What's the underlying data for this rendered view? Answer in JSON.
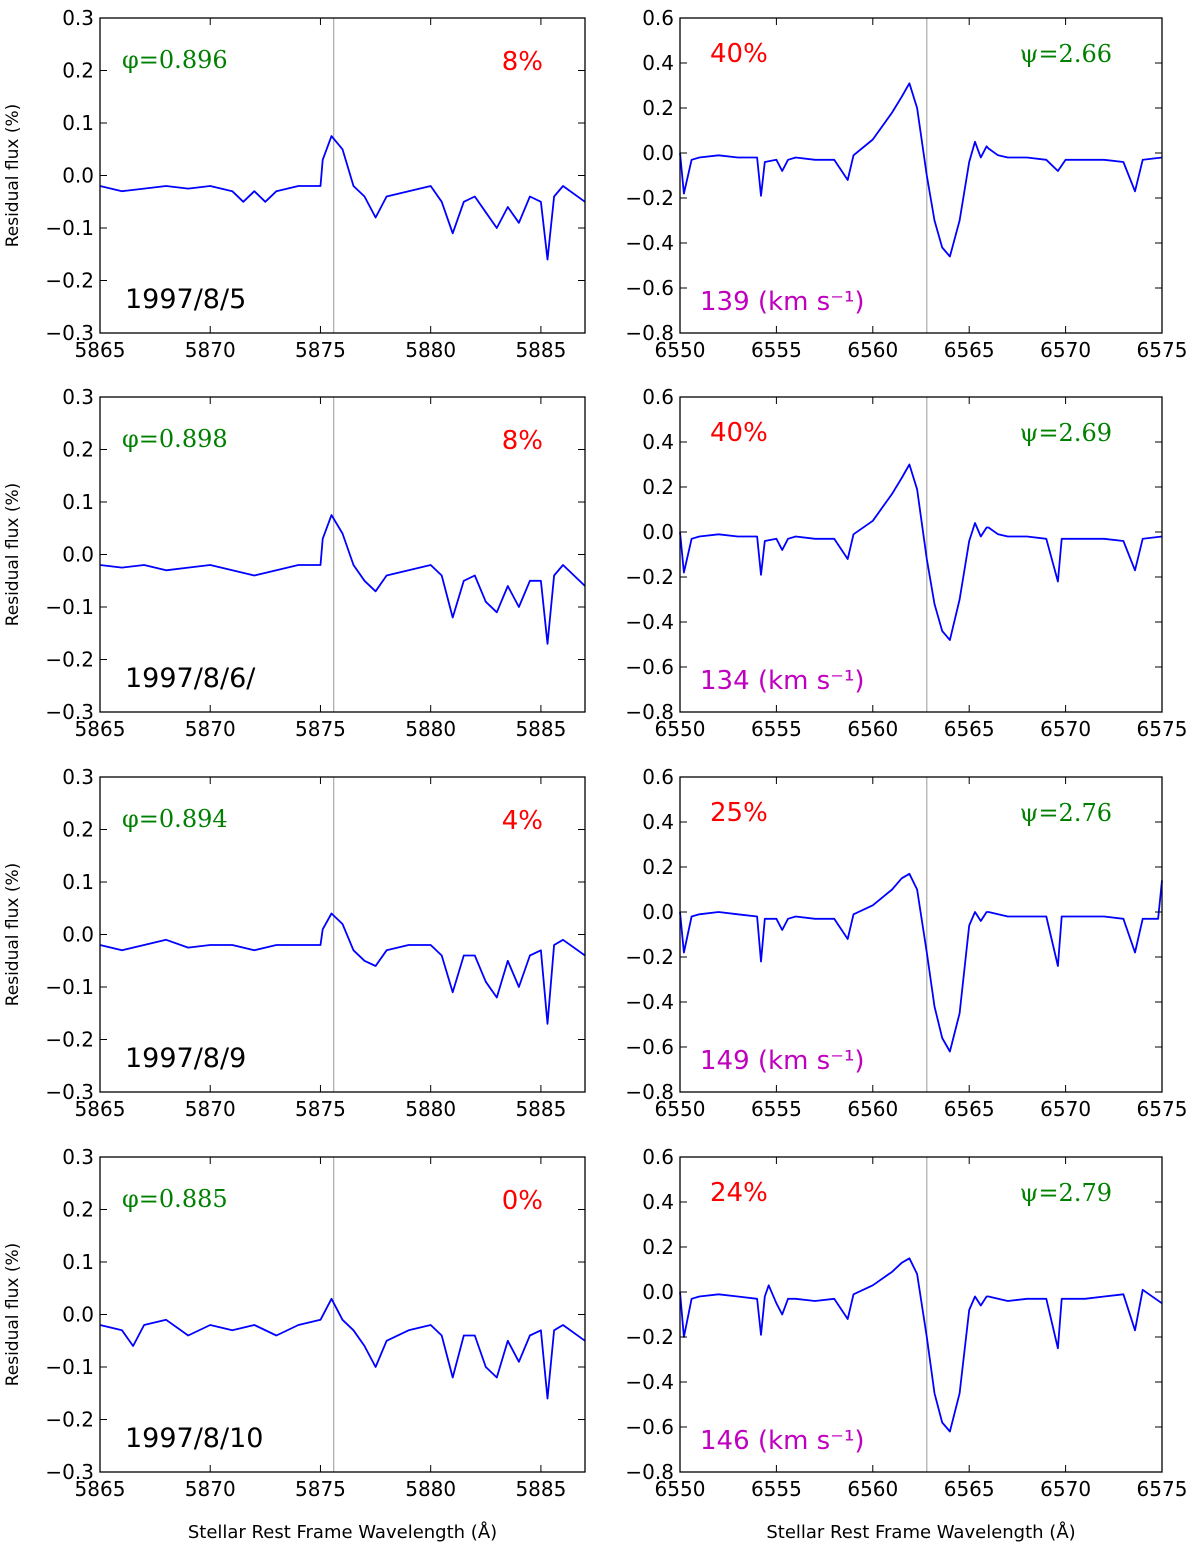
{
  "chart_data": [
    {
      "type": "line",
      "panel": "HeI",
      "ylabel": "Residual flux (%)",
      "xlim": [
        5865,
        5887
      ],
      "ylim": [
        -0.3,
        0.3
      ],
      "xticks": [
        5865,
        5870,
        5875,
        5880,
        5885
      ],
      "yticks": [
        "0.3",
        "0.2",
        "0.1",
        "0.0",
        "−0.1",
        "−0.2",
        "−0.3"
      ],
      "vline_x": 5875.6,
      "phase": "φ=0.896",
      "percent": "8%",
      "date": "1997/8/5",
      "series": [
        {
          "x": [
            5865,
            5866,
            5867,
            5868,
            5869,
            5870,
            5871,
            5871.5,
            5872,
            5872.5,
            5873,
            5874,
            5875,
            5875.1,
            5875.5,
            5876,
            5876.5,
            5877,
            5877.5,
            5878,
            5879,
            5880,
            5880.5,
            5881,
            5881.5,
            5882,
            5882.5,
            5883,
            5883.5,
            5884,
            5884.5,
            5885,
            5885.3,
            5885.6,
            5886,
            5887
          ],
          "y": [
            -0.02,
            -0.03,
            -0.025,
            -0.02,
            -0.025,
            -0.02,
            -0.03,
            -0.05,
            -0.03,
            -0.05,
            -0.03,
            -0.02,
            -0.02,
            0.03,
            0.075,
            0.05,
            -0.02,
            -0.04,
            -0.08,
            -0.04,
            -0.03,
            -0.02,
            -0.05,
            -0.11,
            -0.05,
            -0.04,
            -0.07,
            -0.1,
            -0.06,
            -0.09,
            -0.04,
            -0.05,
            -0.16,
            -0.04,
            -0.02,
            -0.05
          ]
        }
      ]
    },
    {
      "type": "line",
      "panel": "Halpha",
      "xlim": [
        6550,
        6575
      ],
      "ylim": [
        -0.8,
        0.6
      ],
      "xticks": [
        6550,
        6555,
        6560,
        6565,
        6570,
        6575
      ],
      "yticks": [
        "0.6",
        "0.4",
        "0.2",
        "0.0",
        "−0.2",
        "−0.4",
        "−0.6",
        "−0.8"
      ],
      "vline_x": 6562.8,
      "phase": "ψ=2.66",
      "percent": "40%",
      "velocity": "139 (km s⁻¹)",
      "series": [
        {
          "x": [
            6550,
            6550.2,
            6550.6,
            6551,
            6552,
            6553,
            6554,
            6554.2,
            6554.4,
            6555,
            6555.3,
            6555.6,
            6556,
            6557,
            6558,
            6558.7,
            6559,
            6560,
            6561,
            6561.5,
            6561.9,
            6562.3,
            6562.8,
            6563.2,
            6563.6,
            6564,
            6564.5,
            6565,
            6565.3,
            6565.6,
            6565.9,
            6566,
            6566.5,
            6567,
            6568,
            6569,
            6569.6,
            6570,
            6571,
            6572,
            6573,
            6573.6,
            6574,
            6575
          ],
          "y": [
            0,
            -0.18,
            -0.03,
            -0.02,
            -0.01,
            -0.02,
            -0.02,
            -0.19,
            -0.04,
            -0.03,
            -0.08,
            -0.03,
            -0.02,
            -0.03,
            -0.03,
            -0.12,
            -0.01,
            0.06,
            0.18,
            0.25,
            0.31,
            0.2,
            -0.1,
            -0.3,
            -0.42,
            -0.46,
            -0.3,
            -0.04,
            0.05,
            -0.02,
            0.03,
            0.02,
            -0.01,
            -0.02,
            -0.02,
            -0.03,
            -0.08,
            -0.03,
            -0.03,
            -0.03,
            -0.04,
            -0.17,
            -0.03,
            -0.02
          ]
        }
      ]
    },
    {
      "type": "line",
      "panel": "HeI",
      "ylabel": "Residual flux (%)",
      "xlim": [
        5865,
        5887
      ],
      "ylim": [
        -0.3,
        0.3
      ],
      "xticks": [
        5865,
        5870,
        5875,
        5880,
        5885
      ],
      "yticks": [
        "0.3",
        "0.2",
        "0.1",
        "0.0",
        "−0.1",
        "−0.2",
        "−0.3"
      ],
      "vline_x": 5875.6,
      "phase": "φ=0.898",
      "percent": "8%",
      "date": "1997/8/6/",
      "series": [
        {
          "x": [
            5865,
            5866,
            5867,
            5868,
            5869,
            5870,
            5871,
            5872,
            5873,
            5874,
            5875,
            5875.1,
            5875.5,
            5876,
            5876.5,
            5877,
            5877.5,
            5878,
            5879,
            5880,
            5880.5,
            5881,
            5881.5,
            5882,
            5882.5,
            5883,
            5883.5,
            5884,
            5884.5,
            5885,
            5885.3,
            5885.6,
            5886,
            5887
          ],
          "y": [
            -0.02,
            -0.025,
            -0.02,
            -0.03,
            -0.025,
            -0.02,
            -0.03,
            -0.04,
            -0.03,
            -0.02,
            -0.02,
            0.03,
            0.075,
            0.04,
            -0.02,
            -0.05,
            -0.07,
            -0.04,
            -0.03,
            -0.02,
            -0.04,
            -0.12,
            -0.05,
            -0.04,
            -0.09,
            -0.11,
            -0.06,
            -0.1,
            -0.05,
            -0.05,
            -0.17,
            -0.04,
            -0.02,
            -0.06
          ]
        }
      ]
    },
    {
      "type": "line",
      "panel": "Halpha",
      "xlim": [
        6550,
        6575
      ],
      "ylim": [
        -0.8,
        0.6
      ],
      "xticks": [
        6550,
        6555,
        6560,
        6565,
        6570,
        6575
      ],
      "yticks": [
        "0.6",
        "0.4",
        "0.2",
        "0.0",
        "−0.2",
        "−0.4",
        "−0.6",
        "−0.8"
      ],
      "vline_x": 6562.8,
      "phase": "ψ=2.69",
      "percent": "40%",
      "velocity": "134 (km s⁻¹)",
      "series": [
        {
          "x": [
            6550,
            6550.2,
            6550.6,
            6551,
            6552,
            6553,
            6554,
            6554.2,
            6554.4,
            6555,
            6555.3,
            6555.6,
            6556,
            6557,
            6558,
            6558.7,
            6559,
            6560,
            6561,
            6561.5,
            6561.9,
            6562.3,
            6562.8,
            6563.2,
            6563.6,
            6564,
            6564.5,
            6565,
            6565.3,
            6565.6,
            6565.9,
            6566,
            6566.5,
            6567,
            6568,
            6569,
            6569.6,
            6569.8,
            6570,
            6571,
            6572,
            6573,
            6573.6,
            6574,
            6575
          ],
          "y": [
            0,
            -0.18,
            -0.03,
            -0.02,
            -0.01,
            -0.02,
            -0.02,
            -0.19,
            -0.04,
            -0.03,
            -0.08,
            -0.03,
            -0.02,
            -0.03,
            -0.03,
            -0.12,
            -0.01,
            0.05,
            0.17,
            0.24,
            0.3,
            0.19,
            -0.12,
            -0.32,
            -0.44,
            -0.48,
            -0.3,
            -0.04,
            0.04,
            -0.02,
            0.02,
            0.02,
            -0.01,
            -0.02,
            -0.02,
            -0.03,
            -0.22,
            -0.03,
            -0.03,
            -0.03,
            -0.03,
            -0.04,
            -0.17,
            -0.03,
            -0.02
          ]
        }
      ]
    },
    {
      "type": "line",
      "panel": "HeI",
      "ylabel": "Residual flux (%)",
      "xlim": [
        5865,
        5887
      ],
      "ylim": [
        -0.3,
        0.3
      ],
      "xticks": [
        5865,
        5870,
        5875,
        5880,
        5885
      ],
      "yticks": [
        "0.3",
        "0.2",
        "0.1",
        "0.0",
        "−0.1",
        "−0.2",
        "−0.3"
      ],
      "vline_x": 5875.6,
      "phase": "φ=0.894",
      "percent": "4%",
      "date": "1997/8/9",
      "series": [
        {
          "x": [
            5865,
            5866,
            5867,
            5868,
            5869,
            5870,
            5871,
            5872,
            5873,
            5874,
            5875,
            5875.1,
            5875.5,
            5876,
            5876.5,
            5877,
            5877.5,
            5878,
            5879,
            5880,
            5880.5,
            5881,
            5881.5,
            5882,
            5882.5,
            5883,
            5883.5,
            5884,
            5884.5,
            5885,
            5885.3,
            5885.6,
            5886,
            5887
          ],
          "y": [
            -0.02,
            -0.03,
            -0.02,
            -0.01,
            -0.025,
            -0.02,
            -0.02,
            -0.03,
            -0.02,
            -0.02,
            -0.02,
            0.01,
            0.04,
            0.02,
            -0.03,
            -0.05,
            -0.06,
            -0.03,
            -0.02,
            -0.02,
            -0.04,
            -0.11,
            -0.04,
            -0.04,
            -0.09,
            -0.12,
            -0.05,
            -0.1,
            -0.04,
            -0.03,
            -0.17,
            -0.02,
            -0.01,
            -0.04
          ]
        }
      ]
    },
    {
      "type": "line",
      "panel": "Halpha",
      "xlim": [
        6550,
        6575
      ],
      "ylim": [
        -0.8,
        0.6
      ],
      "xticks": [
        6550,
        6555,
        6560,
        6565,
        6570,
        6575
      ],
      "yticks": [
        "0.6",
        "0.4",
        "0.2",
        "0.0",
        "−0.2",
        "−0.4",
        "−0.6",
        "−0.8"
      ],
      "vline_x": 6562.8,
      "phase": "ψ=2.76",
      "percent": "25%",
      "velocity": "149 (km s⁻¹)",
      "series": [
        {
          "x": [
            6550,
            6550.2,
            6550.6,
            6551,
            6552,
            6553,
            6554,
            6554.2,
            6554.4,
            6555,
            6555.3,
            6555.6,
            6556,
            6557,
            6558,
            6558.7,
            6559,
            6560,
            6561,
            6561.5,
            6561.9,
            6562.3,
            6562.8,
            6563.2,
            6563.6,
            6564,
            6564.5,
            6565,
            6565.3,
            6565.6,
            6565.9,
            6566,
            6566.5,
            6567,
            6568,
            6569,
            6569.6,
            6569.8,
            6570,
            6571,
            6572,
            6573,
            6573.6,
            6574,
            6574.8,
            6575
          ],
          "y": [
            0,
            -0.18,
            -0.02,
            -0.01,
            0,
            -0.01,
            -0.02,
            -0.22,
            -0.03,
            -0.03,
            -0.08,
            -0.03,
            -0.02,
            -0.03,
            -0.03,
            -0.12,
            -0.01,
            0.03,
            0.1,
            0.15,
            0.17,
            0.1,
            -0.18,
            -0.42,
            -0.56,
            -0.62,
            -0.45,
            -0.06,
            0.0,
            -0.04,
            0.0,
            0.0,
            -0.01,
            -0.02,
            -0.02,
            -0.02,
            -0.24,
            -0.02,
            -0.02,
            -0.02,
            -0.02,
            -0.03,
            -0.18,
            -0.03,
            -0.03,
            0.14
          ]
        }
      ]
    },
    {
      "type": "line",
      "panel": "HeI",
      "ylabel": "Residual flux (%)",
      "xlim": [
        5865,
        5887
      ],
      "ylim": [
        -0.3,
        0.3
      ],
      "xticks": [
        5865,
        5870,
        5875,
        5880,
        5885
      ],
      "yticks": [
        "0.3",
        "0.2",
        "0.1",
        "0.0",
        "−0.1",
        "−0.2",
        "−0.3"
      ],
      "vline_x": 5875.6,
      "phase": "φ=0.885",
      "percent": "0%",
      "date": "1997/8/10",
      "xlabel": "Stellar Rest Frame Wavelength (Å)",
      "series": [
        {
          "x": [
            5865,
            5866,
            5866.5,
            5867,
            5868,
            5869,
            5870,
            5871,
            5872,
            5873,
            5874,
            5875,
            5875.5,
            5876,
            5876.5,
            5877,
            5877.5,
            5878,
            5879,
            5880,
            5880.5,
            5881,
            5881.5,
            5882,
            5882.5,
            5883,
            5883.5,
            5884,
            5884.5,
            5885,
            5885.3,
            5885.6,
            5886,
            5887
          ],
          "y": [
            -0.02,
            -0.03,
            -0.06,
            -0.02,
            -0.01,
            -0.04,
            -0.02,
            -0.03,
            -0.02,
            -0.04,
            -0.02,
            -0.01,
            0.03,
            -0.01,
            -0.03,
            -0.06,
            -0.1,
            -0.05,
            -0.03,
            -0.02,
            -0.04,
            -0.12,
            -0.04,
            -0.04,
            -0.1,
            -0.12,
            -0.05,
            -0.09,
            -0.04,
            -0.03,
            -0.16,
            -0.03,
            -0.02,
            -0.05
          ]
        }
      ]
    },
    {
      "type": "line",
      "panel": "Halpha",
      "xlim": [
        6550,
        6575
      ],
      "ylim": [
        -0.8,
        0.6
      ],
      "xticks": [
        6550,
        6555,
        6560,
        6565,
        6570,
        6575
      ],
      "yticks": [
        "0.6",
        "0.4",
        "0.2",
        "0.0",
        "−0.2",
        "−0.4",
        "−0.6",
        "−0.8"
      ],
      "vline_x": 6562.8,
      "phase": "ψ=2.79",
      "percent": "24%",
      "velocity": "146 (km s⁻¹)",
      "xlabel": "Stellar Rest Frame Wavelength (Å)",
      "series": [
        {
          "x": [
            6550,
            6550.2,
            6550.6,
            6551,
            6552,
            6553,
            6554,
            6554.2,
            6554.4,
            6554.6,
            6555,
            6555.3,
            6555.6,
            6556,
            6557,
            6558,
            6558.7,
            6559,
            6560,
            6561,
            6561.5,
            6561.9,
            6562.3,
            6562.8,
            6563.2,
            6563.6,
            6564,
            6564.5,
            6565,
            6565.3,
            6565.6,
            6565.9,
            6566,
            6566.5,
            6567,
            6568,
            6569,
            6569.6,
            6569.8,
            6570,
            6571,
            6572,
            6573,
            6573.6,
            6574,
            6575
          ],
          "y": [
            0,
            -0.2,
            -0.03,
            -0.02,
            -0.01,
            -0.02,
            -0.03,
            -0.19,
            -0.02,
            0.03,
            -0.05,
            -0.1,
            -0.03,
            -0.03,
            -0.04,
            -0.03,
            -0.12,
            -0.01,
            0.03,
            0.09,
            0.13,
            0.15,
            0.08,
            -0.2,
            -0.45,
            -0.58,
            -0.62,
            -0.45,
            -0.08,
            -0.02,
            -0.06,
            -0.02,
            -0.02,
            -0.03,
            -0.04,
            -0.03,
            -0.03,
            -0.25,
            -0.03,
            -0.03,
            -0.03,
            -0.02,
            -0.01,
            -0.17,
            0.01,
            -0.05
          ]
        }
      ]
    }
  ]
}
